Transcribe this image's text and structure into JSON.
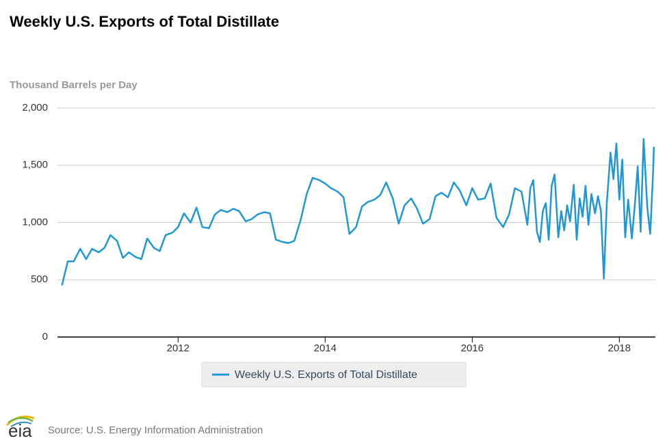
{
  "chart_data": {
    "type": "line",
    "title": "Weekly U.S. Exports of Total Distillate",
    "y_label": "Thousand Barrels per Day",
    "source": "Source: U.S. Energy Information Administration",
    "logo": "eia",
    "xlim": [
      2010.36,
      2018.49
    ],
    "xticks": [
      2012,
      2014,
      2016,
      2018
    ],
    "ylim": [
      0,
      2000
    ],
    "yticks": [
      0,
      500,
      {
        "value": 1000,
        "label": "1,000"
      },
      {
        "value": 1500,
        "label": "1,500"
      },
      {
        "value": 2000,
        "label": "2,000"
      }
    ],
    "grid": true,
    "legend": "bottom",
    "x": [
      2010.42,
      2010.5,
      2010.58,
      2010.67,
      2010.75,
      2010.83,
      2010.92,
      2011.0,
      2011.08,
      2011.17,
      2011.25,
      2011.33,
      2011.42,
      2011.5,
      2011.58,
      2011.67,
      2011.75,
      2011.83,
      2011.92,
      2012.0,
      2012.08,
      2012.17,
      2012.25,
      2012.33,
      2012.42,
      2012.5,
      2012.58,
      2012.67,
      2012.75,
      2012.83,
      2012.92,
      2013.0,
      2013.08,
      2013.17,
      2013.25,
      2013.33,
      2013.42,
      2013.5,
      2013.58,
      2013.67,
      2013.75,
      2013.83,
      2013.92,
      2014.0,
      2014.08,
      2014.17,
      2014.25,
      2014.33,
      2014.42,
      2014.5,
      2014.58,
      2014.67,
      2014.75,
      2014.83,
      2014.92,
      2015.0,
      2015.08,
      2015.17,
      2015.25,
      2015.33,
      2015.42,
      2015.5,
      2015.58,
      2015.67,
      2015.75,
      2015.83,
      2015.92,
      2016.0,
      2016.08,
      2016.17,
      2016.25,
      2016.33,
      2016.42,
      2016.5,
      2016.58,
      2016.67,
      2016.75,
      2016.79,
      2016.83,
      2016.88,
      2016.92,
      2016.96,
      2017.0,
      2017.04,
      2017.08,
      2017.12,
      2017.17,
      2017.21,
      2017.25,
      2017.29,
      2017.33,
      2017.38,
      2017.42,
      2017.46,
      2017.5,
      2017.54,
      2017.58,
      2017.62,
      2017.67,
      2017.71,
      2017.75,
      2017.79,
      2017.83,
      2017.88,
      2017.92,
      2017.96,
      2018.0,
      2018.04,
      2018.08,
      2018.12,
      2018.17,
      2018.21,
      2018.25,
      2018.29,
      2018.33,
      2018.38,
      2018.42,
      2018.46,
      2018.47
    ],
    "series": [
      {
        "name": "Weekly U.S. Exports of Total Distillate",
        "color": "#1f97d4",
        "values": [
          450,
          660,
          660,
          770,
          680,
          770,
          740,
          780,
          890,
          840,
          690,
          740,
          700,
          680,
          860,
          780,
          750,
          890,
          910,
          960,
          1080,
          1000,
          1130,
          960,
          950,
          1070,
          1110,
          1090,
          1120,
          1100,
          1010,
          1030,
          1070,
          1090,
          1080,
          850,
          830,
          820,
          840,
          1030,
          1250,
          1390,
          1370,
          1340,
          1300,
          1270,
          1220,
          900,
          960,
          1140,
          1180,
          1200,
          1240,
          1350,
          1210,
          990,
          1150,
          1210,
          1120,
          990,
          1030,
          1230,
          1260,
          1220,
          1350,
          1280,
          1150,
          1300,
          1200,
          1210,
          1340,
          1040,
          960,
          1070,
          1300,
          1270,
          980,
          1300,
          1370,
          920,
          830,
          1100,
          1170,
          850,
          1320,
          1420,
          870,
          1100,
          930,
          1150,
          1010,
          1330,
          850,
          1210,
          1050,
          1320,
          980,
          1250,
          1080,
          1230,
          1100,
          510,
          1170,
          1610,
          1380,
          1690,
          1200,
          1550,
          870,
          1200,
          860,
          1150,
          1490,
          920,
          1730,
          1130,
          900,
          1460,
          1660
        ]
      }
    ]
  }
}
